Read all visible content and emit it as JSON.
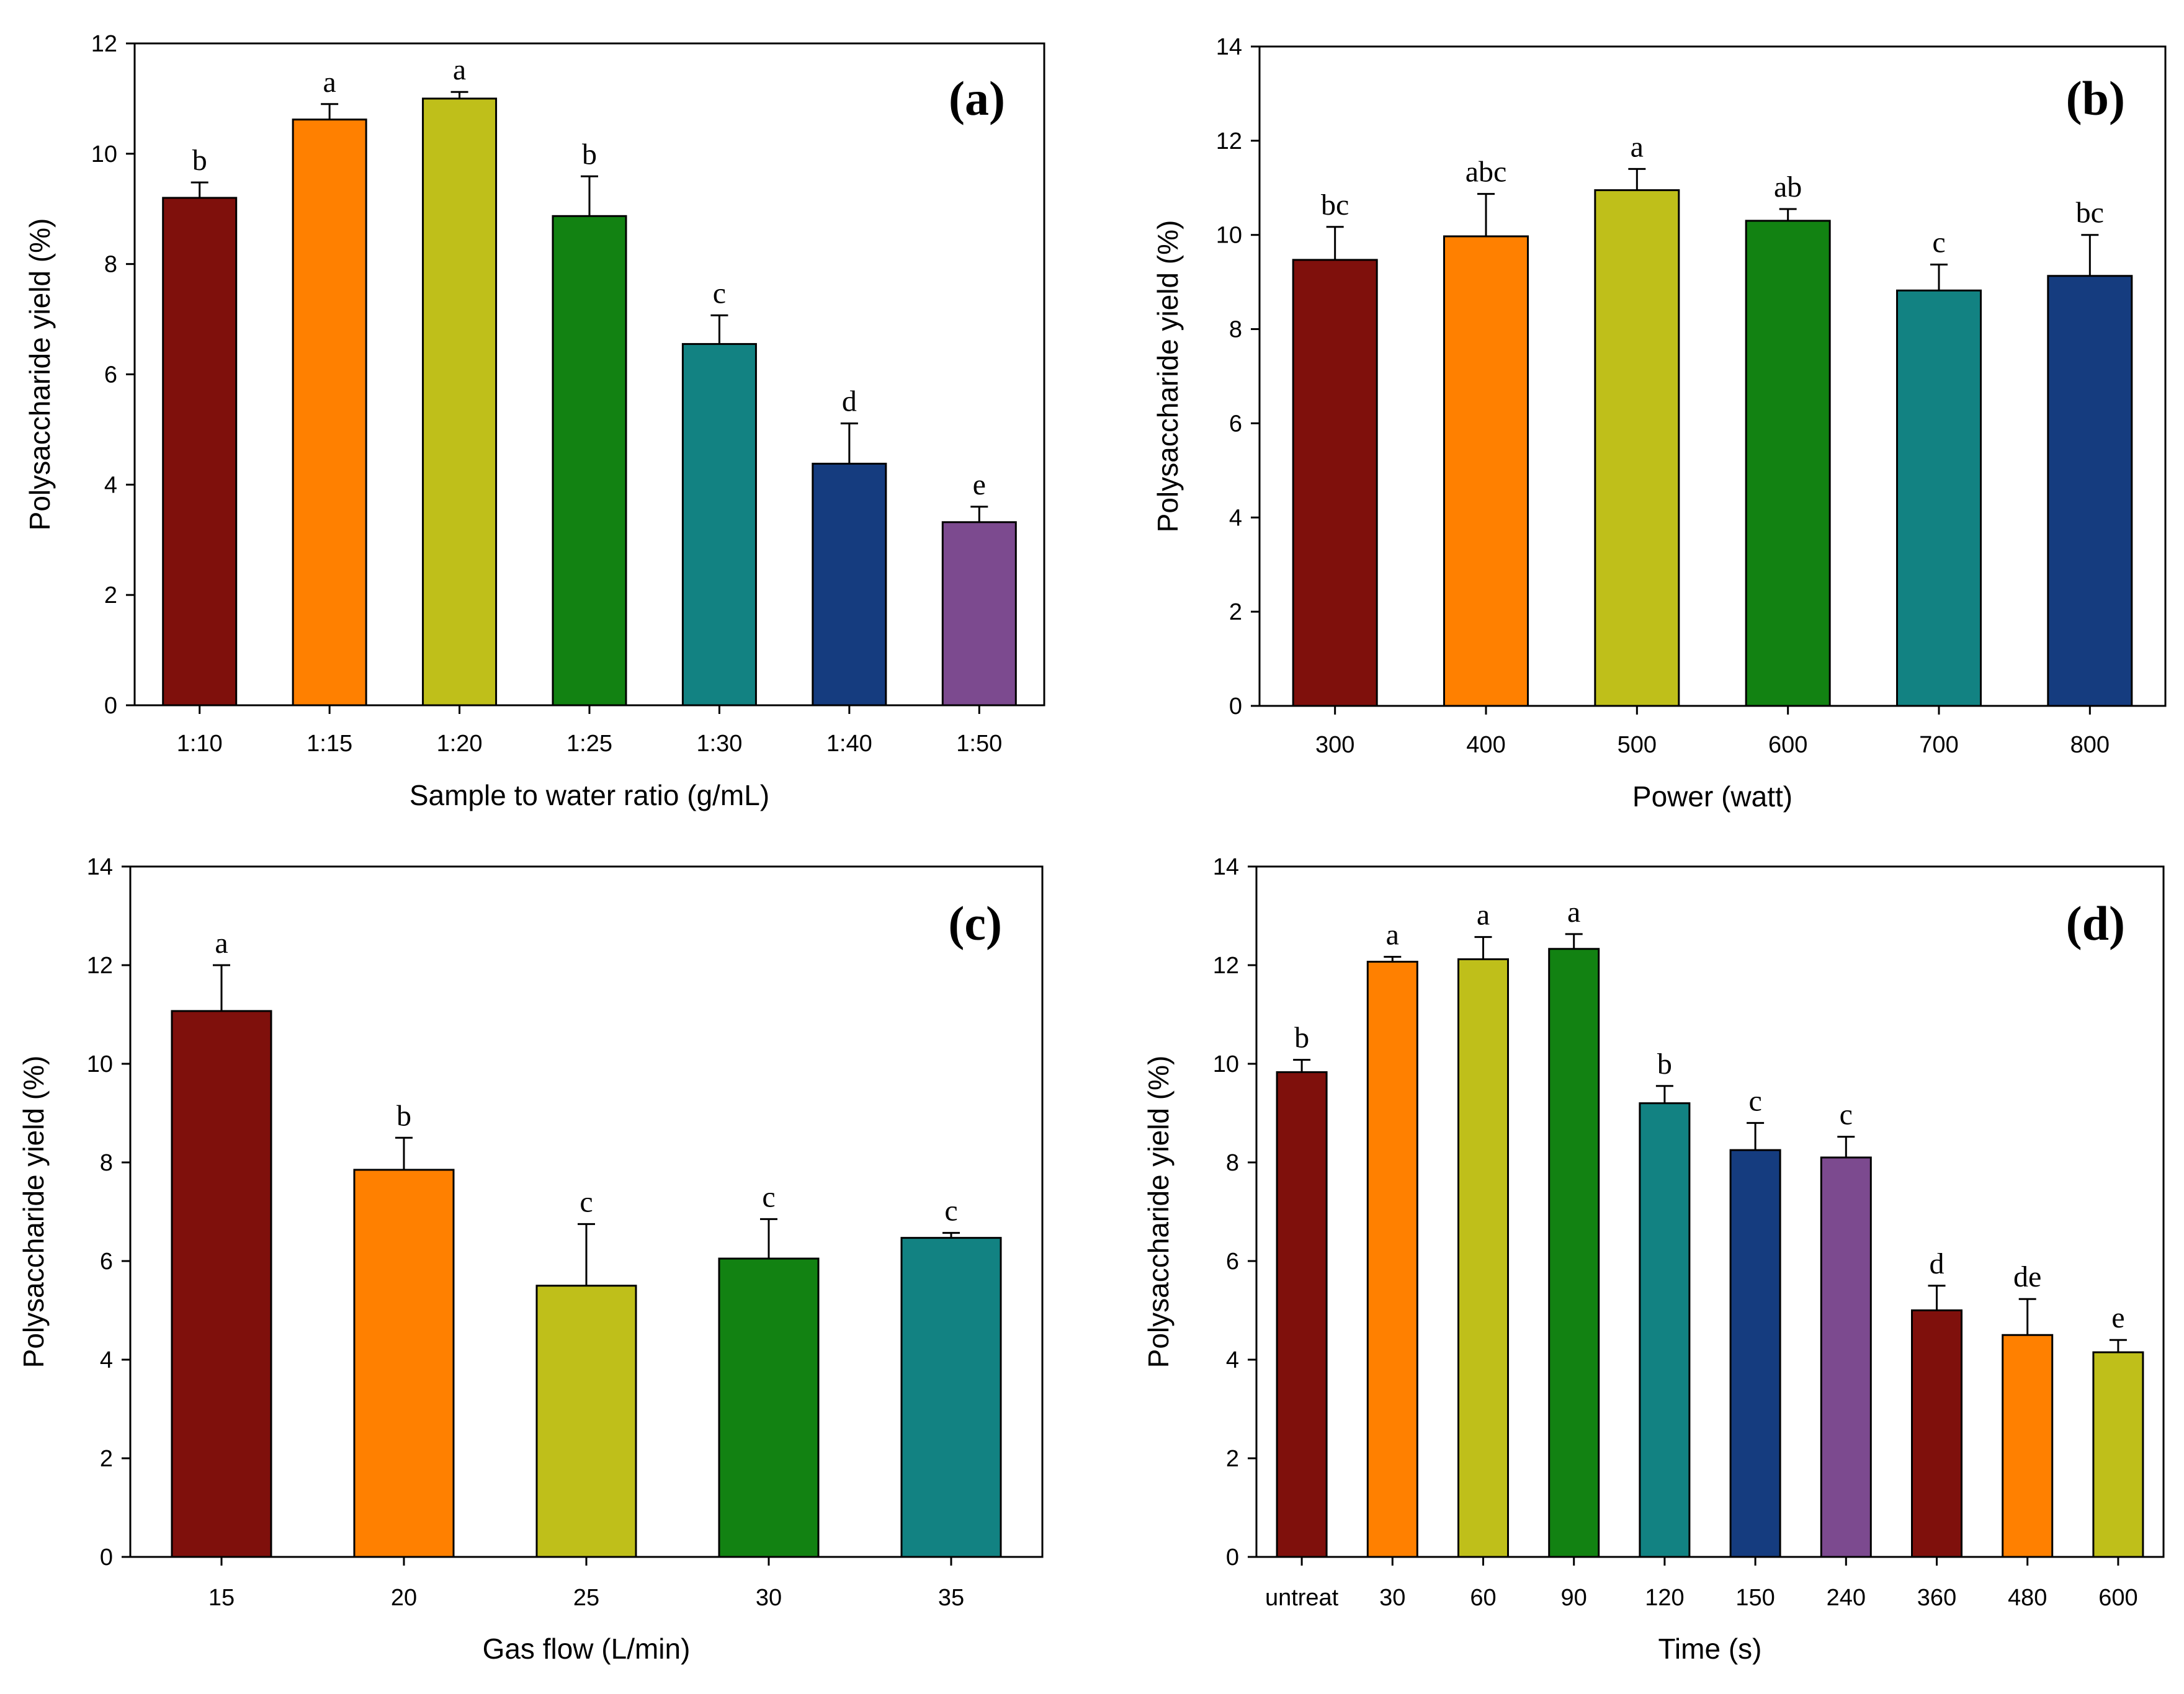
{
  "chart_data": [
    {
      "type": "bar",
      "panel": "(a)",
      "ylabel": "Polysaccharide yield (%)",
      "xlabel": "Sample to water ratio (g/mL)",
      "ylim": [
        0,
        12
      ],
      "yticks": [
        0,
        2,
        4,
        6,
        8,
        10,
        12
      ],
      "categories": [
        "1:10",
        "1:15",
        "1:20",
        "1:25",
        "1:30",
        "1:40",
        "1:50"
      ],
      "values": [
        9.2,
        10.62,
        11.0,
        8.87,
        6.55,
        4.38,
        3.32
      ],
      "errors": [
        0.28,
        0.28,
        0.12,
        0.72,
        0.52,
        0.73,
        0.28
      ],
      "significance": [
        "b",
        "a",
        "a",
        "b",
        "c",
        "d",
        "e"
      ],
      "colors": [
        "#7f100c",
        "#ff8000",
        "#bfbf1a",
        "#128212",
        "#128282",
        "#153c7f",
        "#7c4a8f"
      ]
    },
    {
      "type": "bar",
      "panel": "(b)",
      "ylabel": "Polysaccharide yield (%)",
      "xlabel": "Power (watt)",
      "ylim": [
        0,
        14
      ],
      "yticks": [
        0,
        2,
        4,
        6,
        8,
        10,
        12,
        14
      ],
      "categories": [
        "300",
        "400",
        "500",
        "600",
        "700",
        "800"
      ],
      "values": [
        9.47,
        9.97,
        10.95,
        10.3,
        8.82,
        9.13
      ],
      "errors": [
        0.7,
        0.9,
        0.45,
        0.25,
        0.55,
        0.87
      ],
      "significance": [
        "bc",
        "abc",
        "a",
        "ab",
        "c",
        "bc"
      ],
      "colors": [
        "#7f100c",
        "#ff8000",
        "#bfbf1a",
        "#128212",
        "#128282",
        "#153c7f"
      ]
    },
    {
      "type": "bar",
      "panel": "(c)",
      "ylabel": "Polysaccharide yield (%)",
      "xlabel": "Gas flow (L/min)",
      "ylim": [
        0,
        14
      ],
      "yticks": [
        0,
        2,
        4,
        6,
        8,
        10,
        12,
        14
      ],
      "categories": [
        "15",
        "20",
        "25",
        "30",
        "35"
      ],
      "values": [
        11.07,
        7.85,
        5.5,
        6.05,
        6.47
      ],
      "errors": [
        0.93,
        0.65,
        1.25,
        0.8,
        0.1
      ],
      "significance": [
        "a",
        "b",
        "c",
        "c",
        "c"
      ],
      "colors": [
        "#7f100c",
        "#ff8000",
        "#bfbf1a",
        "#128212",
        "#128282"
      ]
    },
    {
      "type": "bar",
      "panel": "(d)",
      "ylabel": "Polysaccharide yield (%)",
      "xlabel": "Time (s)",
      "ylim": [
        0,
        14
      ],
      "yticks": [
        0,
        2,
        4,
        6,
        8,
        10,
        12,
        14
      ],
      "categories": [
        "untreat",
        "30",
        "60",
        "90",
        "120",
        "150",
        "240",
        "360",
        "480",
        "600"
      ],
      "values": [
        9.83,
        12.07,
        12.12,
        12.33,
        9.2,
        8.25,
        8.1,
        5.0,
        4.5,
        4.15
      ],
      "errors": [
        0.25,
        0.1,
        0.45,
        0.3,
        0.35,
        0.55,
        0.42,
        0.5,
        0.73,
        0.25
      ],
      "significance": [
        "b",
        "a",
        "a",
        "a",
        "b",
        "c",
        "c",
        "d",
        "de",
        "e"
      ],
      "colors": [
        "#7f100c",
        "#ff8000",
        "#bfbf1a",
        "#128212",
        "#128282",
        "#153c7f",
        "#7c4a8f",
        "#7f100c",
        "#ff8000",
        "#bfbf1a"
      ]
    }
  ]
}
